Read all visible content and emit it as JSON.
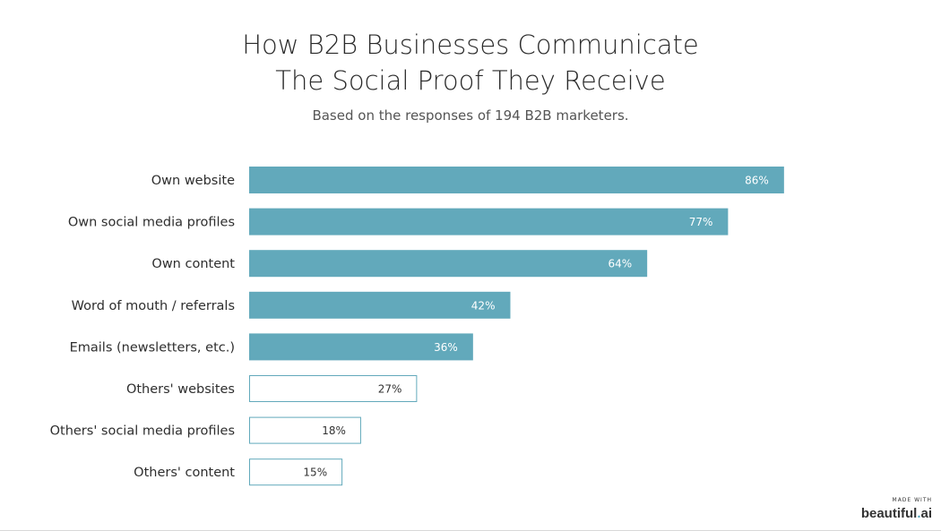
{
  "chart_data": {
    "type": "bar",
    "orientation": "horizontal",
    "title_lines": [
      "How B2B Businesses Communicate",
      "The Social Proof They Receive"
    ],
    "subtitle": "Based on the responses of 194 B2B marketers.",
    "categories": [
      "Own website",
      "Own social media profiles",
      "Own content",
      "Word of mouth / referrals",
      "Emails (newsletters, etc.)",
      "Others' websites",
      "Others' social media profiles",
      "Others' content"
    ],
    "values": [
      86,
      77,
      64,
      42,
      36,
      27,
      18,
      15
    ],
    "value_labels": [
      "86%",
      "77%",
      "64%",
      "42%",
      "36%",
      "27%",
      "18%",
      "15%"
    ],
    "filled": [
      true,
      true,
      true,
      true,
      true,
      false,
      false,
      false
    ],
    "unit": "%",
    "xlim": [
      0,
      100
    ],
    "grid": false,
    "legend": "none",
    "colors": {
      "bar_fill": "#62a9bb",
      "outline_stroke": "#62a9bb",
      "label_on_fill": "#ffffff",
      "label_on_outline": "#333333"
    }
  },
  "badge": {
    "small": "MADE WITH",
    "brand": "beautiful",
    "dot": ".",
    "suffix": "ai"
  }
}
